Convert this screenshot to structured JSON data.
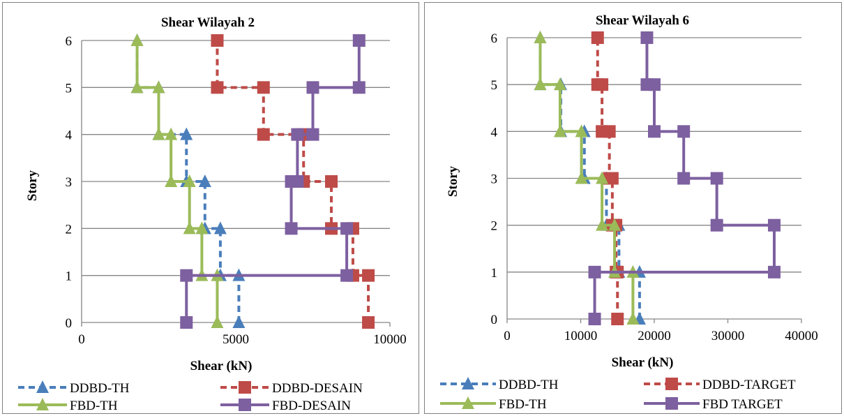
{
  "chart_data": [
    {
      "type": "line",
      "title": "Shear Wilayah 2",
      "xlabel": "Shear (kN)",
      "ylabel": "Story",
      "xlim": [
        0,
        10000
      ],
      "ylim": [
        0,
        6
      ],
      "xticks": [
        "0",
        "5000",
        "10000"
      ],
      "yticks": [
        "0",
        "1",
        "2",
        "3",
        "4",
        "5",
        "6"
      ],
      "grid": "horizontal",
      "legend_position": "bottom",
      "series": [
        {
          "name": "DDBD-TH",
          "color": "#4a7ebb",
          "dash": "dashed",
          "marker": "triangle",
          "points": [
            [
              5100,
              0
            ],
            [
              5100,
              1
            ],
            [
              4500,
              1
            ],
            [
              4500,
              2
            ],
            [
              4000,
              2
            ],
            [
              4000,
              3
            ],
            [
              3400,
              3
            ],
            [
              3400,
              4
            ],
            [
              2500,
              4
            ],
            [
              2500,
              5
            ],
            [
              1800,
              5
            ],
            [
              1800,
              6
            ]
          ]
        },
        {
          "name": "DDBD-DESAIN",
          "color": "#be4b48",
          "dash": "dashed",
          "marker": "square",
          "points": [
            [
              9300,
              0
            ],
            [
              9300,
              1
            ],
            [
              8800,
              1
            ],
            [
              8800,
              2
            ],
            [
              8100,
              2
            ],
            [
              8100,
              3
            ],
            [
              7200,
              3
            ],
            [
              7200,
              4
            ],
            [
              5900,
              4
            ],
            [
              5900,
              5
            ],
            [
              4400,
              5
            ],
            [
              4400,
              6
            ]
          ]
        },
        {
          "name": "FBD-TH",
          "color": "#9bbb59",
          "dash": "solid",
          "marker": "triangle",
          "points": [
            [
              4400,
              0
            ],
            [
              4400,
              1
            ],
            [
              3900,
              1
            ],
            [
              3900,
              2
            ],
            [
              3500,
              2
            ],
            [
              3500,
              3
            ],
            [
              2900,
              3
            ],
            [
              2900,
              4
            ],
            [
              2500,
              4
            ],
            [
              2500,
              5
            ],
            [
              1800,
              5
            ],
            [
              1800,
              6
            ]
          ]
        },
        {
          "name": "FBD-DESAIN",
          "color": "#7d60a0",
          "dash": "solid",
          "marker": "square",
          "points": [
            [
              3400,
              0
            ],
            [
              3400,
              1
            ],
            [
              8600,
              1
            ],
            [
              8600,
              2
            ],
            [
              6800,
              2
            ],
            [
              6800,
              3
            ],
            [
              7000,
              3
            ],
            [
              7000,
              4
            ],
            [
              7500,
              4
            ],
            [
              7500,
              5
            ],
            [
              9000,
              5
            ],
            [
              9000,
              6
            ]
          ]
        }
      ]
    },
    {
      "type": "line",
      "title": "Shear Wilayah 6",
      "xlabel": "Shear (kN)",
      "ylabel": "Story",
      "xlim": [
        0,
        40000
      ],
      "ylim": [
        0,
        6
      ],
      "xticks": [
        "0",
        "10000",
        "20000",
        "30000",
        "40000"
      ],
      "yticks": [
        "0",
        "1",
        "2",
        "3",
        "4",
        "5",
        "6"
      ],
      "grid": "horizontal",
      "legend_position": "bottom",
      "series": [
        {
          "name": "DDBD-TH",
          "color": "#4a7ebb",
          "dash": "dashed",
          "marker": "triangle",
          "points": [
            [
              18000,
              0
            ],
            [
              18000,
              1
            ],
            [
              15200,
              1
            ],
            [
              15200,
              2
            ],
            [
              13500,
              2
            ],
            [
              13500,
              3
            ],
            [
              10500,
              3
            ],
            [
              10500,
              4
            ],
            [
              7300,
              4
            ],
            [
              7300,
              5
            ],
            [
              4500,
              5
            ],
            [
              4500,
              6
            ]
          ]
        },
        {
          "name": "DDBD-TARGET",
          "color": "#be4b48",
          "dash": "dashed",
          "marker": "square",
          "points": [
            [
              15000,
              0
            ],
            [
              15000,
              1
            ],
            [
              14800,
              1
            ],
            [
              14800,
              2
            ],
            [
              14300,
              2
            ],
            [
              14300,
              3
            ],
            [
              13900,
              3
            ],
            [
              13900,
              4
            ],
            [
              12900,
              4
            ],
            [
              12900,
              5
            ],
            [
              12300,
              5
            ],
            [
              12300,
              6
            ]
          ]
        },
        {
          "name": "FBD-TH",
          "color": "#9bbb59",
          "dash": "solid",
          "marker": "triangle",
          "points": [
            [
              17100,
              0
            ],
            [
              17100,
              1
            ],
            [
              14600,
              1
            ],
            [
              14600,
              2
            ],
            [
              12900,
              2
            ],
            [
              12900,
              3
            ],
            [
              10100,
              3
            ],
            [
              10100,
              4
            ],
            [
              7200,
              4
            ],
            [
              7200,
              5
            ],
            [
              4500,
              5
            ],
            [
              4500,
              6
            ]
          ]
        },
        {
          "name": "FBD TARGET",
          "color": "#7d60a0",
          "dash": "solid",
          "marker": "square",
          "points": [
            [
              11900,
              0
            ],
            [
              11900,
              1
            ],
            [
              36300,
              1
            ],
            [
              36300,
              2
            ],
            [
              28500,
              2
            ],
            [
              28500,
              3
            ],
            [
              24000,
              3
            ],
            [
              24000,
              4
            ],
            [
              20000,
              4
            ],
            [
              20000,
              5
            ],
            [
              19000,
              5
            ],
            [
              19000,
              6
            ]
          ]
        }
      ]
    }
  ]
}
